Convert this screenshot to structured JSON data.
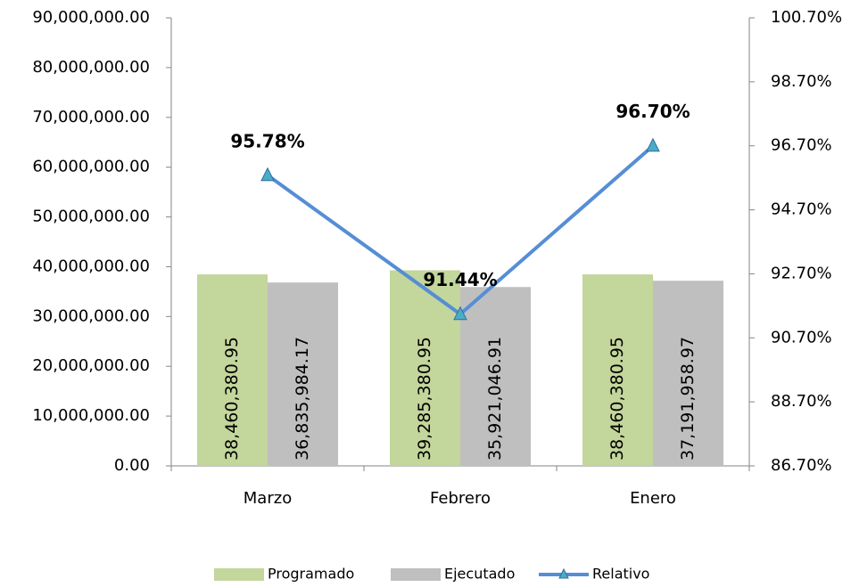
{
  "chart_data": {
    "type": "bar",
    "categories": [
      "Marzo",
      "Febrero",
      "Enero"
    ],
    "series": [
      {
        "name": "Programado",
        "color": "#c3d69b",
        "values": [
          38460380.95,
          39285380.95,
          38460380.95
        ],
        "value_labels": [
          "38,460,380.95",
          "39,285,380.95",
          "38,460,380.95"
        ]
      },
      {
        "name": "Ejecutado",
        "color": "#bfbfbf",
        "values": [
          36835984.17,
          35921046.91,
          37191958.97
        ],
        "value_labels": [
          "36,835,984.17",
          "35,921,046.91",
          "37,191,958.97"
        ]
      },
      {
        "name": "Relativo",
        "type": "line",
        "axis": "y2",
        "color": "#558ed5",
        "marker_color": "#4bacc6",
        "values": [
          95.78,
          91.44,
          96.7
        ],
        "value_labels": [
          "95.78%",
          "91.44%",
          "96.70%"
        ]
      }
    ],
    "ylim": [
      0,
      90000000
    ],
    "yticks": [
      {
        "value": 0,
        "label": "0.00"
      },
      {
        "value": 10000000,
        "label": "10,000,000.00"
      },
      {
        "value": 20000000,
        "label": "20,000,000.00"
      },
      {
        "value": 30000000,
        "label": "30,000,000.00"
      },
      {
        "value": 40000000,
        "label": "40,000,000.00"
      },
      {
        "value": 50000000,
        "label": "50,000,000.00"
      },
      {
        "value": 60000000,
        "label": "60,000,000.00"
      },
      {
        "value": 70000000,
        "label": "70,000,000.00"
      },
      {
        "value": 80000000,
        "label": "80,000,000.00"
      },
      {
        "value": 90000000,
        "label": "90,000,000.00"
      }
    ],
    "y2lim": [
      86.7,
      100.7
    ],
    "y2ticks": [
      {
        "value": 86.7,
        "label": "86.70%"
      },
      {
        "value": 88.7,
        "label": "88.70%"
      },
      {
        "value": 90.7,
        "label": "90.70%"
      },
      {
        "value": 92.7,
        "label": "92.70%"
      },
      {
        "value": 94.7,
        "label": "94.70%"
      },
      {
        "value": 96.7,
        "label": "96.70%"
      },
      {
        "value": 98.7,
        "label": "98.70%"
      },
      {
        "value": 100.7,
        "label": "100.70%"
      }
    ],
    "legend": "bottom"
  }
}
